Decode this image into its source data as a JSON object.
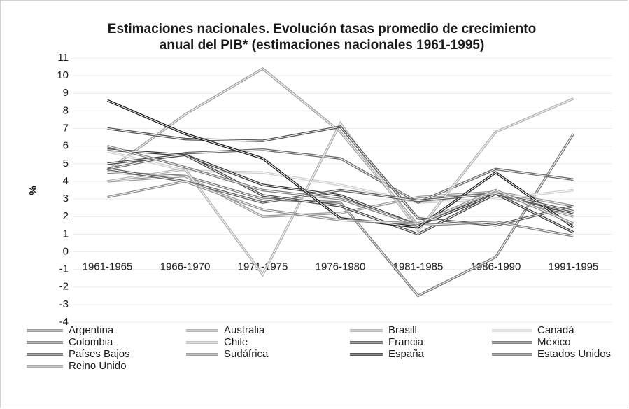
{
  "chart_data": {
    "type": "line",
    "title": "Estimaciones nacionales. Evolución tasas promedio de crecimiento",
    "subtitle": "anual del PIB* (estimaciones nacionales 1961-1995)",
    "y_label": "%",
    "categories": [
      "1961-1965",
      "1966-1970",
      "1971-1975",
      "1976-1980",
      "1981-1985",
      "1986-1990",
      "1991-1995"
    ],
    "ylim": [
      -4,
      11
    ],
    "yticks": [
      -4,
      -3,
      -2,
      -1,
      0,
      1,
      2,
      3,
      4,
      5,
      6,
      7,
      8,
      9,
      10,
      11
    ],
    "grid": true,
    "series": [
      {
        "name": "Argentina",
        "color": "#7a7a7a",
        "values": [
          4.5,
          4.3,
          3.0,
          2.8,
          -2.5,
          -0.3,
          6.7
        ]
      },
      {
        "name": "Australia",
        "color": "#9a9a9a",
        "values": [
          4.0,
          4.3,
          2.0,
          2.2,
          3.1,
          3.4,
          2.6
        ]
      },
      {
        "name": "Brasill",
        "color": "#a0a0a0",
        "values": [
          4.6,
          7.8,
          10.4,
          6.8,
          1.5,
          3.3,
          2.0
        ]
      },
      {
        "name": "Canadá",
        "color": "#cfcfcf",
        "values": [
          5.7,
          4.6,
          4.5,
          3.8,
          2.8,
          3.0,
          3.5
        ]
      },
      {
        "name": "Colombia",
        "color": "#6a6a6a",
        "values": [
          4.7,
          5.6,
          5.8,
          5.3,
          2.8,
          4.7,
          4.1
        ]
      },
      {
        "name": "Chile",
        "color": "#b0b0b0",
        "values": [
          4.0,
          4.7,
          -1.3,
          7.3,
          1.2,
          6.8,
          8.7
        ]
      },
      {
        "name": "Francia",
        "color": "#3a3a3a",
        "values": [
          5.8,
          5.5,
          3.8,
          3.2,
          1.5,
          3.3,
          1.1
        ]
      },
      {
        "name": "México",
        "color": "#555555",
        "values": [
          7.0,
          6.4,
          6.3,
          7.1,
          1.9,
          1.5,
          2.6
        ]
      },
      {
        "name": "Países Bajos",
        "color": "#4a4a4a",
        "values": [
          5.0,
          5.5,
          3.2,
          2.6,
          1.0,
          3.3,
          2.2
        ]
      },
      {
        "name": "Sudáfrica",
        "color": "#808080",
        "values": [
          6.0,
          4.8,
          3.5,
          3.0,
          1.5,
          1.7,
          0.9
        ]
      },
      {
        "name": "España",
        "color": "#1e1e1e",
        "values": [
          8.6,
          6.7,
          5.3,
          1.9,
          1.4,
          4.5,
          1.4
        ]
      },
      {
        "name": "Estados Unidos",
        "color": "#5e5e5e",
        "values": [
          4.7,
          4.0,
          2.8,
          3.5,
          2.9,
          3.3,
          2.3
        ]
      },
      {
        "name": "Reino Unido",
        "color": "#909090",
        "values": [
          3.1,
          4.0,
          2.4,
          1.8,
          1.6,
          3.5,
          1.6
        ]
      }
    ]
  }
}
